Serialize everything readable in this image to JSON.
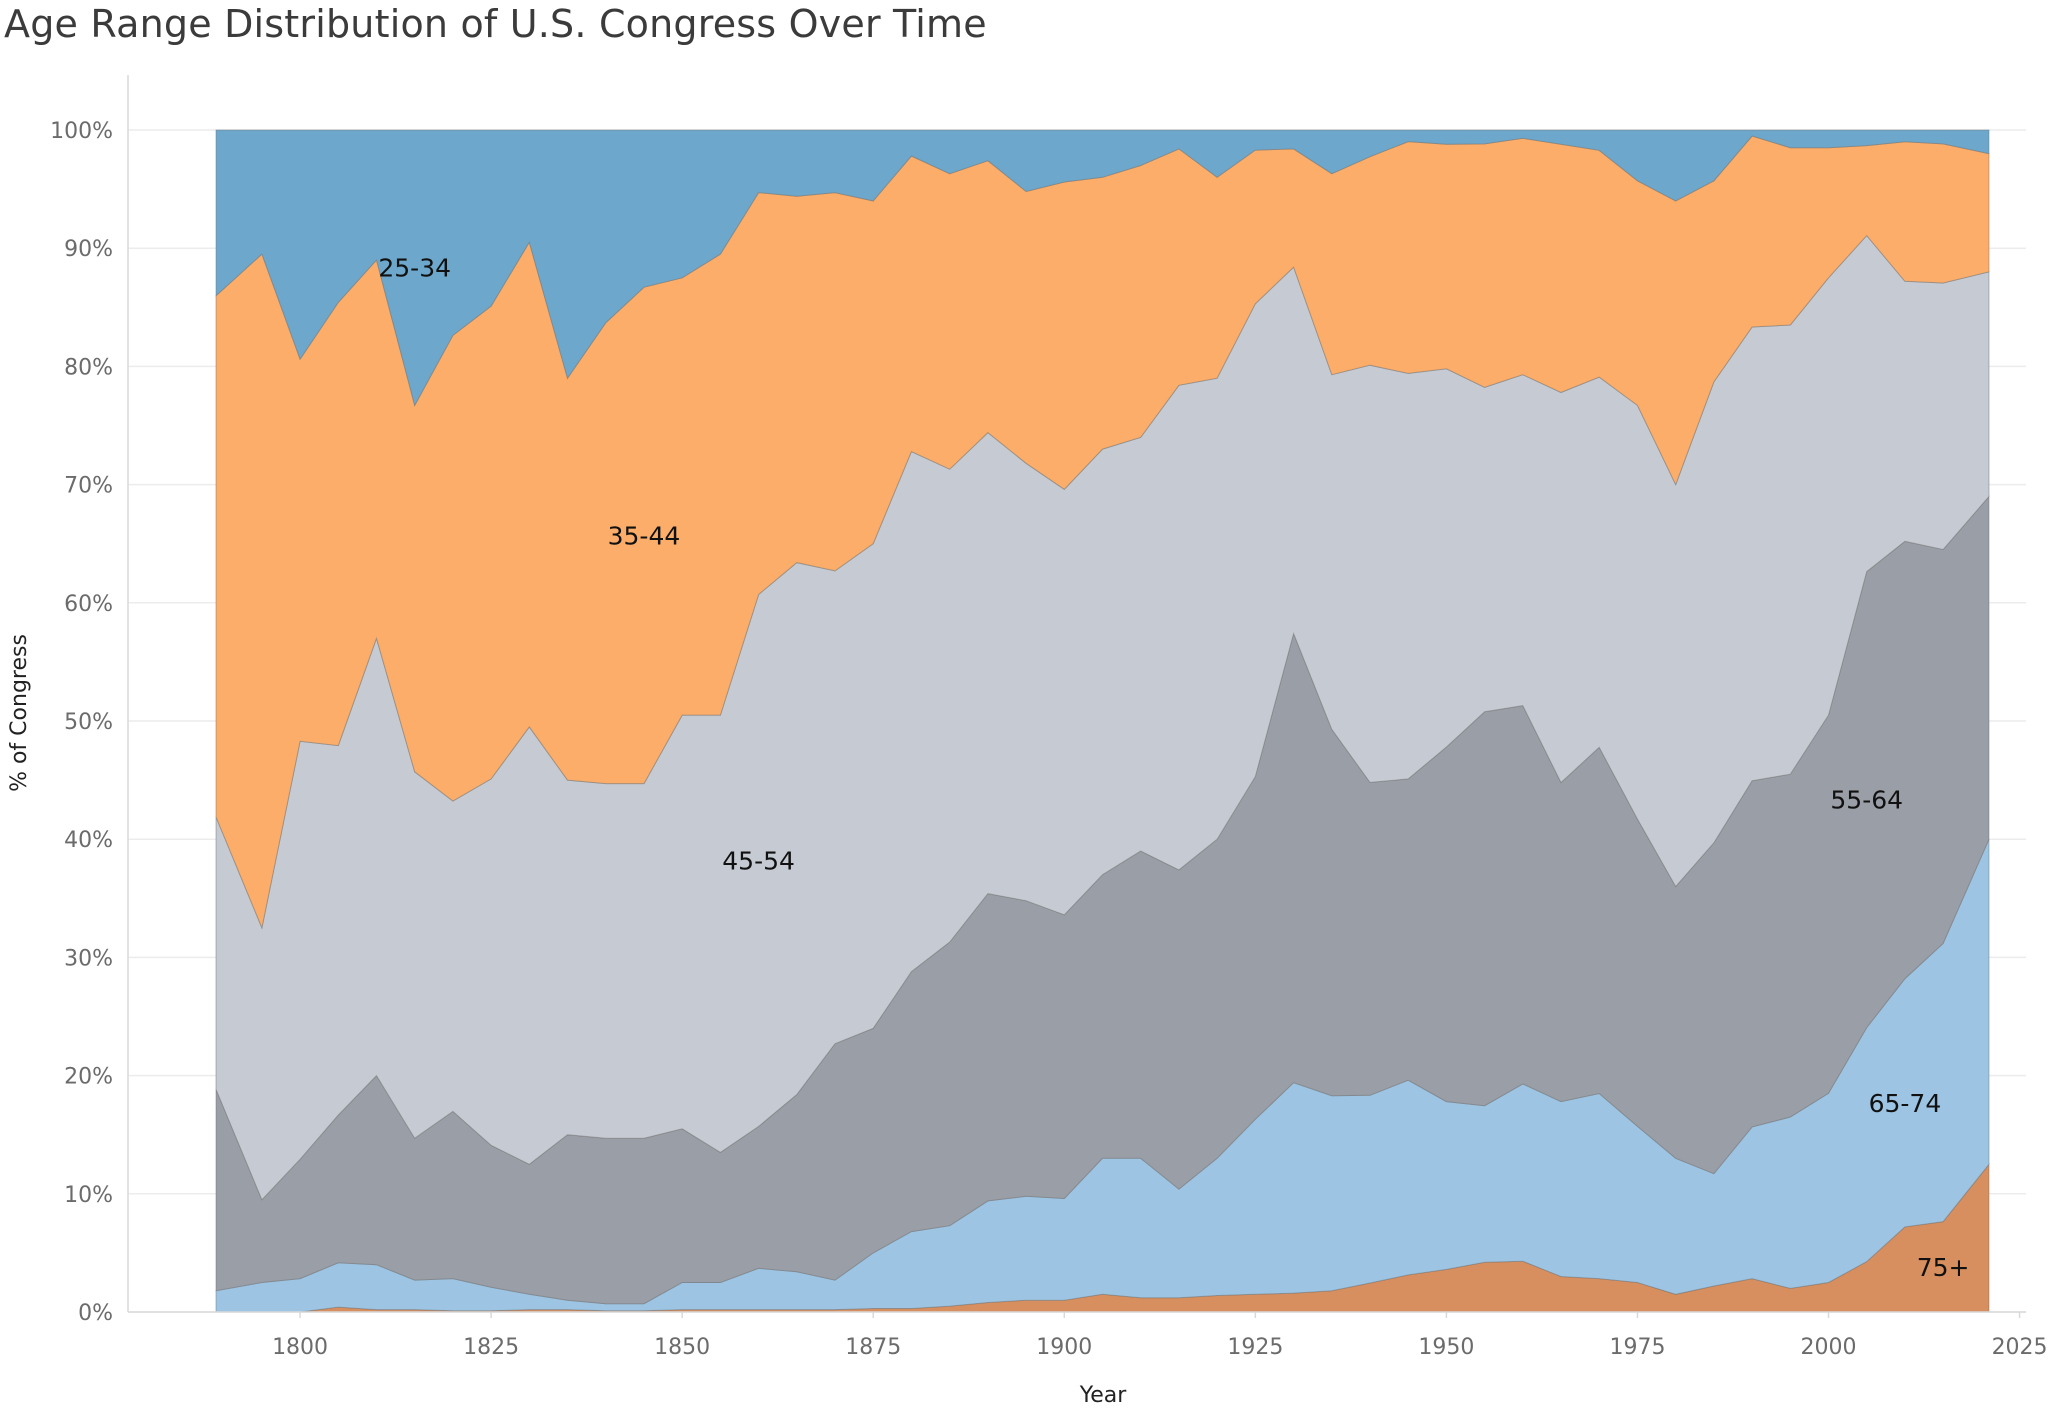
{
  "chart_data": {
    "type": "area",
    "stacked": true,
    "normalized": true,
    "title": "Age Range Distribution of U.S. Congress Over Time",
    "xlabel": "Year",
    "ylabel": "% of Congress",
    "xlim": [
      1789,
      2021
    ],
    "ylim": [
      0,
      100
    ],
    "x_ticks": [
      "1800",
      "1825",
      "1850",
      "1875",
      "1900",
      "1925",
      "1950",
      "1975",
      "2000",
      "2025"
    ],
    "y_ticks": [
      "0%",
      "10%",
      "20%",
      "30%",
      "40%",
      "50%",
      "60%",
      "70%",
      "80%",
      "90%",
      "100%"
    ],
    "grid": "horizontal",
    "legend": "inline labels",
    "x": [
      1789,
      1795,
      1800,
      1805,
      1810,
      1815,
      1820,
      1825,
      1830,
      1835,
      1840,
      1845,
      1850,
      1855,
      1860,
      1865,
      1870,
      1875,
      1880,
      1885,
      1890,
      1895,
      1900,
      1905,
      1910,
      1915,
      1920,
      1925,
      1930,
      1935,
      1940,
      1945,
      1950,
      1955,
      1960,
      1965,
      1970,
      1975,
      1980,
      1985,
      1990,
      1995,
      2000,
      2005,
      2010,
      2015,
      2021
    ],
    "series": [
      {
        "name": "75+",
        "color": "#d78f5f",
        "values": [
          0,
          0,
          0,
          0.4,
          0.2,
          0.2,
          0.1,
          0.1,
          0.2,
          0.2,
          0.1,
          0.1,
          0.2,
          0.2,
          0.2,
          0.2,
          0.2,
          0.3,
          0.3,
          0.5,
          0.8,
          1,
          1,
          1.5,
          1.2,
          1.2,
          1.4,
          1.5,
          1.6,
          1.8,
          2.5,
          3.2,
          3.6,
          4.3,
          4.3,
          3,
          2.8,
          2.5,
          1.5,
          2.2,
          2.8,
          2,
          2.5,
          4.2,
          7.2,
          7.8,
          12.5
        ]
      },
      {
        "name": "65-74",
        "color": "#9dc5e3",
        "values": [
          1.8,
          2.5,
          2.8,
          3.6,
          3.8,
          2.5,
          2.7,
          2,
          1.3,
          0.8,
          0.6,
          0.6,
          2.3,
          2.3,
          3.5,
          3.2,
          2.5,
          4.7,
          6.5,
          6.8,
          8.6,
          8.8,
          8.6,
          11.5,
          11.8,
          9.2,
          11.6,
          14.8,
          17.8,
          16.5,
          16.2,
          16.8,
          14.2,
          13.5,
          15,
          14.8,
          15.5,
          13.2,
          11.5,
          9.5,
          12.7,
          14.5,
          16,
          19.5,
          21,
          24,
          27.5
        ]
      },
      {
        "name": "55-64",
        "color": "#9a9ea6",
        "values": [
          17,
          7,
          10,
          12,
          16,
          12,
          14,
          12,
          11,
          14,
          14,
          14,
          13,
          11,
          12,
          15,
          20,
          19,
          22,
          24,
          26,
          25,
          24,
          24,
          26,
          27,
          27,
          29,
          38,
          31,
          27,
          26,
          30,
          34,
          32,
          27,
          29,
          26,
          23,
          28,
          29,
          29,
          32,
          38,
          37,
          34,
          29
        ]
      },
      {
        "name": "45-54",
        "color": "#c6cbd3",
        "values": [
          23,
          23,
          35,
          30,
          37,
          31,
          26,
          31,
          37,
          30,
          30,
          30,
          35,
          37,
          45,
          45,
          40,
          41,
          44,
          40,
          39,
          37,
          36,
          36,
          35,
          41,
          39,
          40,
          31,
          30,
          36,
          35,
          32,
          28,
          28,
          33,
          31,
          35,
          34,
          39,
          38,
          38,
          37,
          28,
          22,
          23,
          19
        ]
      },
      {
        "name": "35-44",
        "color": "#fbad69",
        "values": [
          44,
          57,
          32,
          36,
          32,
          31,
          39,
          40,
          41,
          34,
          39,
          42,
          37,
          39,
          34,
          31,
          32,
          29,
          25,
          25,
          23,
          23,
          26,
          23,
          23,
          20,
          17,
          13,
          10,
          17,
          18,
          20,
          19,
          21,
          20,
          21,
          19,
          19,
          24,
          17,
          16,
          15,
          11,
          7.5,
          11.8,
          12,
          10
        ]
      },
      {
        "name": "25-34",
        "color": "#6da8cc",
        "values": [
          14,
          10.5,
          19.2,
          14,
          11,
          23.3,
          17.2,
          14.9,
          9.5,
          21,
          16.3,
          13.3,
          12.5,
          10.5,
          5.3,
          5.6,
          5.3,
          6,
          2.2,
          3.7,
          2.6,
          5.2,
          4.4,
          4,
          3,
          1.6,
          4,
          1.7,
          1.6,
          3.7,
          2.3,
          1,
          1.2,
          1.2,
          0.7,
          1.2,
          1.7,
          4.3,
          6,
          4.3,
          0.5,
          1.5,
          1.5,
          1.3,
          1,
          1.2,
          2
        ]
      }
    ]
  }
}
